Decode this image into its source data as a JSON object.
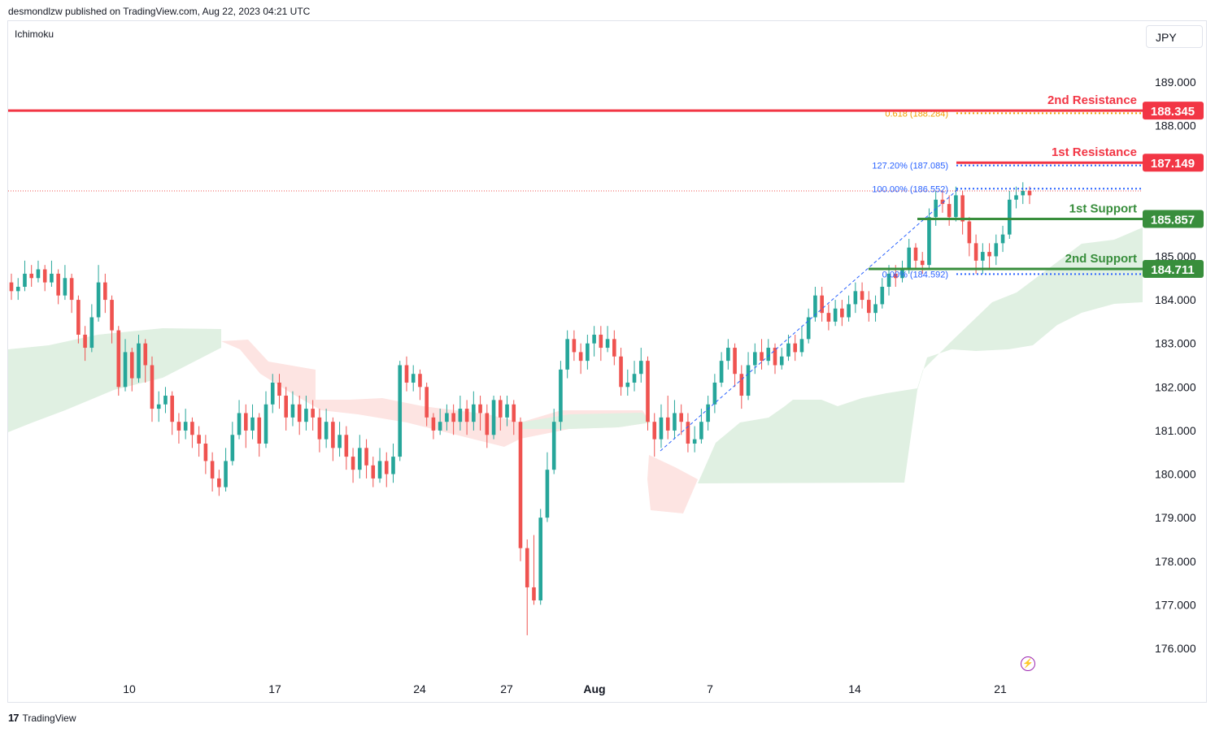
{
  "header": {
    "publisher_text": "desmondlzw published on TradingView.com, Aug 22, 2023 04:21 UTC"
  },
  "indicator": "Ichimoku",
  "currency_button": "JPY",
  "footer": {
    "logo_icon": "tradingview-logo-icon",
    "brand": "TradingView"
  },
  "colors": {
    "up": "#26a69a",
    "down": "#ef5350",
    "resistance": "#f23645",
    "support": "#388e3c",
    "cloud_bull": "#e0f0e2",
    "cloud_bear": "#fde4e2",
    "fib": "#2962ff",
    "golden": "#f0a000"
  },
  "chart_data": {
    "type": "candlestick",
    "y_range": [
      175.5,
      190.0
    ],
    "y_ticks": [
      "189.000",
      "188.000",
      "185.000",
      "184.000",
      "183.000",
      "182.000",
      "181.000",
      "180.000",
      "179.000",
      "178.000",
      "177.000",
      "176.000"
    ],
    "x_ticks": [
      "10",
      "17",
      "24",
      "27",
      "Aug",
      "7",
      "14",
      "21"
    ],
    "levels": [
      {
        "name": "2nd Resistance",
        "value": 188.345,
        "label": "188.345",
        "kind": "resistance"
      },
      {
        "name": "1st Resistance",
        "value": 187.149,
        "label": "187.149",
        "kind": "resistance"
      },
      {
        "name": "1st Support",
        "value": 185.857,
        "label": "185.857",
        "kind": "support"
      },
      {
        "name": "2nd Support",
        "value": 184.711,
        "label": "184.711",
        "kind": "support"
      }
    ],
    "fib_labels": [
      {
        "text": "0.618 (188.284)",
        "value": 188.284,
        "kind": "golden"
      },
      {
        "text": "127.20% (187.085)",
        "value": 187.085,
        "kind": "fib"
      },
      {
        "text": "100.00% (186.552)",
        "value": 186.552,
        "kind": "fib"
      },
      {
        "text": "0.00% (184.592)",
        "value": 184.592,
        "kind": "fib"
      }
    ],
    "last_price": 186.5,
    "candles": [
      [
        184.4,
        184.2,
        184.6,
        184.0
      ],
      [
        184.2,
        184.3,
        184.5,
        184.0
      ],
      [
        184.3,
        184.6,
        184.9,
        184.2
      ],
      [
        184.6,
        184.5,
        184.8,
        184.3
      ],
      [
        184.5,
        184.7,
        184.9,
        184.4
      ],
      [
        184.7,
        184.4,
        184.8,
        184.2
      ],
      [
        184.4,
        184.6,
        184.9,
        184.3
      ],
      [
        184.6,
        184.1,
        184.7,
        183.9
      ],
      [
        184.1,
        184.5,
        184.8,
        184.0
      ],
      [
        184.5,
        184.0,
        184.6,
        183.7
      ],
      [
        184.0,
        183.2,
        184.1,
        183.0
      ],
      [
        183.2,
        182.9,
        183.4,
        182.6
      ],
      [
        182.9,
        183.6,
        183.9,
        182.8
      ],
      [
        183.6,
        184.4,
        184.8,
        183.5
      ],
      [
        184.4,
        184.0,
        184.6,
        183.7
      ],
      [
        184.0,
        183.3,
        184.1,
        183.0
      ],
      [
        183.3,
        182.0,
        183.4,
        181.8
      ],
      [
        182.0,
        182.8,
        183.1,
        181.9
      ],
      [
        182.8,
        182.2,
        182.9,
        181.9
      ],
      [
        182.2,
        183.0,
        183.2,
        182.1
      ],
      [
        183.0,
        182.5,
        183.1,
        182.1
      ],
      [
        182.5,
        181.5,
        182.7,
        181.2
      ],
      [
        181.5,
        181.6,
        181.9,
        181.2
      ],
      [
        181.6,
        181.8,
        182.0,
        181.4
      ],
      [
        181.8,
        181.2,
        181.9,
        180.9
      ],
      [
        181.2,
        181.0,
        181.4,
        180.7
      ],
      [
        181.0,
        181.2,
        181.5,
        180.8
      ],
      [
        181.2,
        180.9,
        181.3,
        180.6
      ],
      [
        180.9,
        180.7,
        181.1,
        180.4
      ],
      [
        180.7,
        180.3,
        180.9,
        180.0
      ],
      [
        180.3,
        179.9,
        180.5,
        179.6
      ],
      [
        179.9,
        179.7,
        180.1,
        179.5
      ],
      [
        179.7,
        180.3,
        180.6,
        179.6
      ],
      [
        180.3,
        180.9,
        181.2,
        180.2
      ],
      [
        180.9,
        181.4,
        181.7,
        180.8
      ],
      [
        181.4,
        181.0,
        181.6,
        180.6
      ],
      [
        181.0,
        181.3,
        181.6,
        180.8
      ],
      [
        181.3,
        180.7,
        181.4,
        180.4
      ],
      [
        180.7,
        181.6,
        181.9,
        180.6
      ],
      [
        181.6,
        182.1,
        182.3,
        181.4
      ],
      [
        182.1,
        181.8,
        182.3,
        181.5
      ],
      [
        181.8,
        181.3,
        182.0,
        181.0
      ],
      [
        181.3,
        181.6,
        181.9,
        181.1
      ],
      [
        181.6,
        181.2,
        181.8,
        180.9
      ],
      [
        181.2,
        181.5,
        181.8,
        181.0
      ],
      [
        181.5,
        181.3,
        181.7,
        181.0
      ],
      [
        181.3,
        180.8,
        181.5,
        180.5
      ],
      [
        180.8,
        181.2,
        181.5,
        180.6
      ],
      [
        181.2,
        180.6,
        181.3,
        180.3
      ],
      [
        180.6,
        180.9,
        181.2,
        180.4
      ],
      [
        180.9,
        180.4,
        181.1,
        180.1
      ],
      [
        180.4,
        180.1,
        180.6,
        179.8
      ],
      [
        180.1,
        180.6,
        180.9,
        179.9
      ],
      [
        180.6,
        180.2,
        180.8,
        179.9
      ],
      [
        180.2,
        179.9,
        180.4,
        179.7
      ],
      [
        179.9,
        180.3,
        180.6,
        179.8
      ],
      [
        180.3,
        180.0,
        180.5,
        179.7
      ],
      [
        180.0,
        180.4,
        180.7,
        179.8
      ],
      [
        180.4,
        182.5,
        182.6,
        180.3
      ],
      [
        182.5,
        182.1,
        182.7,
        181.9
      ],
      [
        182.1,
        182.3,
        182.5,
        181.9
      ],
      [
        182.3,
        182.0,
        182.4,
        181.7
      ],
      [
        182.0,
        181.3,
        182.1,
        181.1
      ],
      [
        181.3,
        181.0,
        181.4,
        180.8
      ],
      [
        181.0,
        181.2,
        181.5,
        180.9
      ],
      [
        181.2,
        181.4,
        181.6,
        181.0
      ],
      [
        181.4,
        181.2,
        181.6,
        180.9
      ],
      [
        181.2,
        181.5,
        181.8,
        181.0
      ],
      [
        181.5,
        181.2,
        181.7,
        180.9
      ],
      [
        181.2,
        181.6,
        181.9,
        181.0
      ],
      [
        181.6,
        181.4,
        181.8,
        181.0
      ],
      [
        181.4,
        180.9,
        181.6,
        180.6
      ],
      [
        180.9,
        181.7,
        181.8,
        180.8
      ],
      [
        181.7,
        181.3,
        181.8,
        181.0
      ],
      [
        181.3,
        181.6,
        181.8,
        181.1
      ],
      [
        181.6,
        181.2,
        181.7,
        180.9
      ],
      [
        181.2,
        178.3,
        181.3,
        178.0
      ],
      [
        178.3,
        177.4,
        178.5,
        176.3
      ],
      [
        177.4,
        177.1,
        178.6,
        177.0
      ],
      [
        177.1,
        179.0,
        179.2,
        177.0
      ],
      [
        179.0,
        180.1,
        180.5,
        178.9
      ],
      [
        180.1,
        181.2,
        181.5,
        180.0
      ],
      [
        181.2,
        182.4,
        182.6,
        181.0
      ],
      [
        182.4,
        183.1,
        183.3,
        182.2
      ],
      [
        183.1,
        182.8,
        183.3,
        182.6
      ],
      [
        182.8,
        182.6,
        183.0,
        182.3
      ],
      [
        182.6,
        183.0,
        183.2,
        182.4
      ],
      [
        183.0,
        183.2,
        183.4,
        182.7
      ],
      [
        183.2,
        182.9,
        183.4,
        182.6
      ],
      [
        182.9,
        183.1,
        183.4,
        182.8
      ],
      [
        183.1,
        182.7,
        183.3,
        182.5
      ],
      [
        182.7,
        182.0,
        182.9,
        181.8
      ],
      [
        182.0,
        182.1,
        182.4,
        181.8
      ],
      [
        182.1,
        182.3,
        182.6,
        181.9
      ],
      [
        182.3,
        182.6,
        182.9,
        182.1
      ],
      [
        182.6,
        181.2,
        182.7,
        181.0
      ],
      [
        181.2,
        180.8,
        181.4,
        180.4
      ],
      [
        180.8,
        181.3,
        181.6,
        180.6
      ],
      [
        181.3,
        181.0,
        181.8,
        180.8
      ],
      [
        181.0,
        181.4,
        181.7,
        180.8
      ],
      [
        181.4,
        181.2,
        181.6,
        180.9
      ],
      [
        181.2,
        180.7,
        181.4,
        180.5
      ],
      [
        180.7,
        180.8,
        181.1,
        180.5
      ],
      [
        180.8,
        181.2,
        181.5,
        180.7
      ],
      [
        181.2,
        181.6,
        181.8,
        181.0
      ],
      [
        181.6,
        182.1,
        182.3,
        181.4
      ],
      [
        182.1,
        182.6,
        182.8,
        182.0
      ],
      [
        182.6,
        182.9,
        183.1,
        182.4
      ],
      [
        182.9,
        182.3,
        183.0,
        182.0
      ],
      [
        182.3,
        181.8,
        182.5,
        181.5
      ],
      [
        181.8,
        182.5,
        182.8,
        181.7
      ],
      [
        182.5,
        182.8,
        183.0,
        182.3
      ],
      [
        182.8,
        182.6,
        183.1,
        182.4
      ],
      [
        182.6,
        182.9,
        183.1,
        182.5
      ],
      [
        182.9,
        182.5,
        183.0,
        182.3
      ],
      [
        182.5,
        182.7,
        182.9,
        182.4
      ],
      [
        182.7,
        183.0,
        183.2,
        182.6
      ],
      [
        183.0,
        182.8,
        183.2,
        182.6
      ],
      [
        182.8,
        183.1,
        183.4,
        182.7
      ],
      [
        183.1,
        183.6,
        183.8,
        183.0
      ],
      [
        183.6,
        184.1,
        184.3,
        183.5
      ],
      [
        184.1,
        183.7,
        184.3,
        183.5
      ],
      [
        183.7,
        183.5,
        183.9,
        183.3
      ],
      [
        183.5,
        183.8,
        184.0,
        183.4
      ],
      [
        183.8,
        183.6,
        184.0,
        183.4
      ],
      [
        183.6,
        183.9,
        184.1,
        183.5
      ],
      [
        183.9,
        184.2,
        184.4,
        183.7
      ],
      [
        184.2,
        184.0,
        184.4,
        183.8
      ],
      [
        184.0,
        183.7,
        184.2,
        183.5
      ],
      [
        183.7,
        183.9,
        184.1,
        183.5
      ],
      [
        183.9,
        184.3,
        184.5,
        183.8
      ],
      [
        184.3,
        184.6,
        184.8,
        184.1
      ],
      [
        184.6,
        184.5,
        184.8,
        184.3
      ],
      [
        184.5,
        184.7,
        184.9,
        184.4
      ],
      [
        184.7,
        185.2,
        185.4,
        184.6
      ],
      [
        185.2,
        184.9,
        185.3,
        184.7
      ],
      [
        184.9,
        184.8,
        185.1,
        184.6
      ],
      [
        184.8,
        185.9,
        186.1,
        184.7
      ],
      [
        185.9,
        186.3,
        186.5,
        185.7
      ],
      [
        186.3,
        186.2,
        186.5,
        186.0
      ],
      [
        186.2,
        185.9,
        186.4,
        185.7
      ],
      [
        185.9,
        186.4,
        186.6,
        185.8
      ],
      [
        186.4,
        185.8,
        186.5,
        185.5
      ],
      [
        185.8,
        185.3,
        185.9,
        185.0
      ],
      [
        185.3,
        184.9,
        185.5,
        184.6
      ],
      [
        184.9,
        185.1,
        185.3,
        184.6
      ],
      [
        185.1,
        185.0,
        185.3,
        184.7
      ],
      [
        185.0,
        185.3,
        185.5,
        184.8
      ],
      [
        185.3,
        185.5,
        185.7,
        185.1
      ],
      [
        185.5,
        186.3,
        186.5,
        185.4
      ],
      [
        186.3,
        186.4,
        186.6,
        186.1
      ],
      [
        186.4,
        186.5,
        186.7,
        186.2
      ],
      [
        186.5,
        186.4,
        186.6,
        186.2
      ]
    ]
  }
}
